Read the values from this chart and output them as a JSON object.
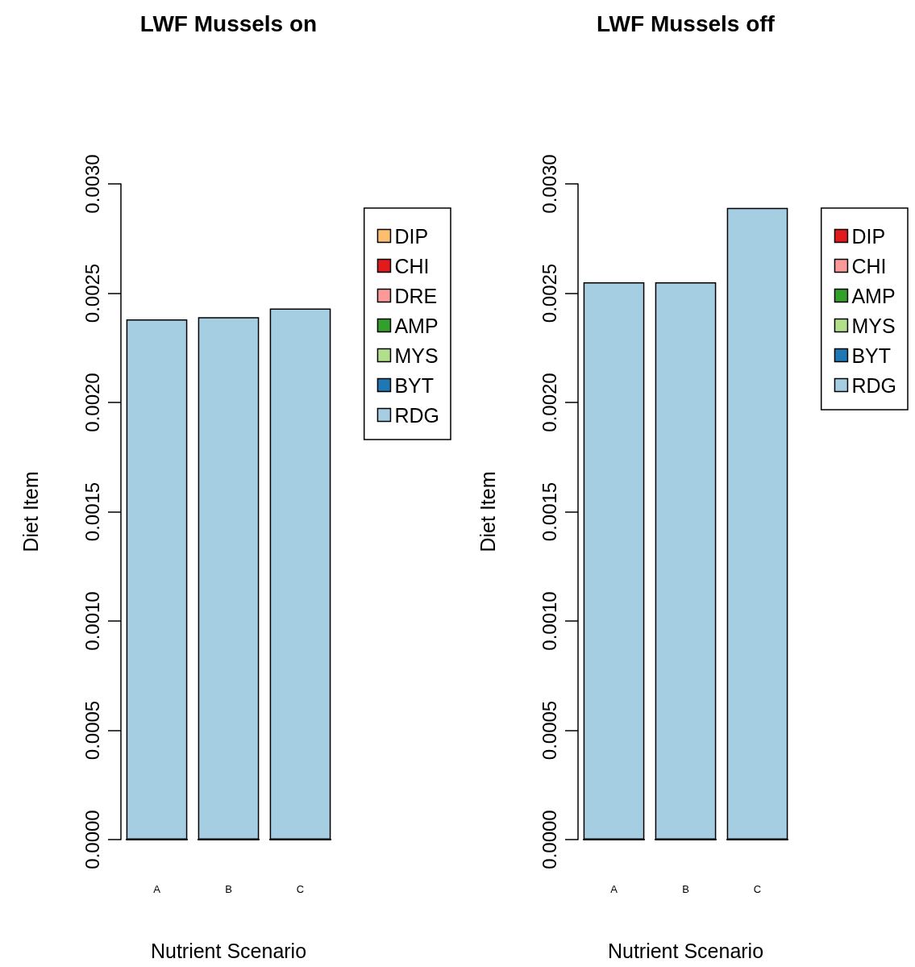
{
  "chart_data": [
    {
      "type": "bar",
      "title": "LWF Mussels on",
      "xlabel": "Nutrient Scenario",
      "ylabel": "Diet Item",
      "categories": [
        "A",
        "B",
        "C"
      ],
      "stacked": true,
      "legend": "top right",
      "grid": false,
      "ylim": [
        0,
        0.003
      ],
      "yticks": [
        {
          "value": 0,
          "label": "0.0000"
        },
        {
          "value": 0.0005,
          "label": "0.0005"
        },
        {
          "value": 0.001,
          "label": "0.0010"
        },
        {
          "value": 0.0015,
          "label": "0.0015"
        },
        {
          "value": 0.002,
          "label": "0.0020"
        },
        {
          "value": 0.0025,
          "label": "0.0025"
        },
        {
          "value": 0.003,
          "label": "0.0030"
        }
      ],
      "series": [
        {
          "name": "DIP",
          "color": "#fdbf6f",
          "values": [
            0,
            0,
            0
          ]
        },
        {
          "name": "CHI",
          "color": "#e31a1c",
          "values": [
            0,
            0,
            0
          ]
        },
        {
          "name": "DRE",
          "color": "#fb9a99",
          "values": [
            0,
            0,
            0
          ]
        },
        {
          "name": "AMP",
          "color": "#33a02c",
          "values": [
            0,
            0,
            0
          ]
        },
        {
          "name": "MYS",
          "color": "#b2df8a",
          "values": [
            0,
            0,
            0
          ]
        },
        {
          "name": "BYT",
          "color": "#1f78b4",
          "values": [
            0,
            0,
            0
          ]
        },
        {
          "name": "RDG",
          "color": "#a6cee3",
          "values": [
            0.00238,
            0.00239,
            0.00243
          ]
        }
      ]
    },
    {
      "type": "bar",
      "title": "LWF Mussels off",
      "xlabel": "Nutrient Scenario",
      "ylabel": "Diet Item",
      "categories": [
        "A",
        "B",
        "C"
      ],
      "stacked": true,
      "legend": "top right",
      "grid": false,
      "ylim": [
        0,
        0.003
      ],
      "yticks": [
        {
          "value": 0,
          "label": "0.0000"
        },
        {
          "value": 0.0005,
          "label": "0.0005"
        },
        {
          "value": 0.001,
          "label": "0.0010"
        },
        {
          "value": 0.0015,
          "label": "0.0015"
        },
        {
          "value": 0.002,
          "label": "0.0020"
        },
        {
          "value": 0.0025,
          "label": "0.0025"
        },
        {
          "value": 0.003,
          "label": "0.0030"
        }
      ],
      "series": [
        {
          "name": "DIP",
          "color": "#e31a1c",
          "values": [
            0,
            0,
            0
          ]
        },
        {
          "name": "CHI",
          "color": "#fb9a99",
          "values": [
            0,
            0,
            0
          ]
        },
        {
          "name": "AMP",
          "color": "#33a02c",
          "values": [
            0,
            0,
            0
          ]
        },
        {
          "name": "MYS",
          "color": "#b2df8a",
          "values": [
            0,
            0,
            0
          ]
        },
        {
          "name": "BYT",
          "color": "#1f78b4",
          "values": [
            0,
            0,
            0
          ]
        },
        {
          "name": "RDG",
          "color": "#a6cee3",
          "values": [
            0.00255,
            0.00255,
            0.00289
          ]
        }
      ]
    }
  ]
}
